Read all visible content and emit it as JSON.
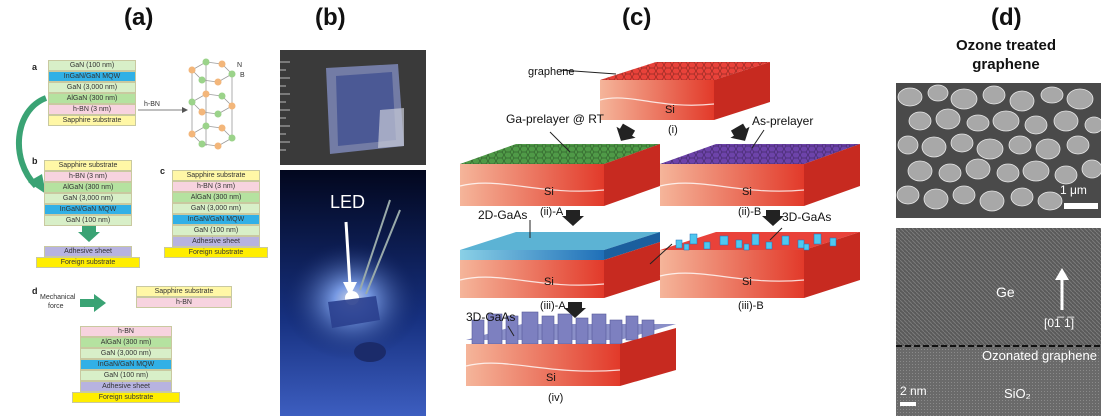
{
  "panels": {
    "a": {
      "label": "(a)"
    },
    "b": {
      "label": "(b)"
    },
    "c": {
      "label": "(c)"
    },
    "d": {
      "label": "(d)",
      "title_line1": "Ozone treated",
      "title_line2": "graphene"
    }
  },
  "panel_a": {
    "sub_a": "a",
    "sub_b": "b",
    "sub_c": "c",
    "sub_d": "d",
    "stack_a": [
      "GaN (100 nm)",
      "InGaN/GaN MQW",
      "GaN (3,000 nm)",
      "AlGaN (300 nm)",
      "h-BN (3 nm)",
      "Sapphire substrate"
    ],
    "hbn_arrow_label": "h-BN",
    "atom_n": "N",
    "atom_b": "B",
    "stack_b": [
      "Sapphire substrate",
      "h-BN (3 nm)",
      "AlGaN (300 nm)",
      "GaN (3,000 nm)",
      "InGaN/GaN MQW",
      "GaN (100 nm)"
    ],
    "stack_b_bottom": [
      "Adhesive sheet",
      "Foreign substrate"
    ],
    "stack_c": [
      "Sapphire substrate",
      "h-BN (3 nm)",
      "AlGaN (300 nm)",
      "GaN (3,000 nm)",
      "InGaN/GaN MQW",
      "GaN (100 nm)",
      "Adhesive sheet",
      "Foreign substrate"
    ],
    "mech_label_1": "Mechanical",
    "mech_label_2": "force",
    "stack_d_top": [
      "Sapphire substrate",
      "h-BN"
    ],
    "stack_d": [
      "h-BN",
      "AlGaN (300 nm)",
      "GaN (3,000 nm)",
      "InGaN/GaN MQW",
      "GaN (100 nm)",
      "Adhesive sheet",
      "Foreign substrate"
    ]
  },
  "panel_b": {
    "led_label": "LED"
  },
  "panel_c": {
    "graphene": "graphene",
    "si": "Si",
    "step_i": "(i)",
    "ga_prelayer": "Ga-prelayer @ RT",
    "as_prelayer": "As-prelayer",
    "step_iiA": "(ii)-A",
    "step_iiB": "(ii)-B",
    "gaas_2d": "2D-GaAs",
    "gaas_3d": "3D-GaAs",
    "step_iiiA": "(iii)-A",
    "step_iiiB": "(iii)-B",
    "gaas_3d_iv": "3D-GaAs",
    "step_iv": "(iv)"
  },
  "panel_d": {
    "scale_top": "1 μm",
    "ge": "Ge",
    "direction": "[01̅ 1̅]",
    "ozonated": "Ozonated graphene",
    "scale_bottom": "2 nm",
    "sio2": "SiO₂"
  },
  "colors": {
    "si_red": "#e23a2a",
    "graphene_green": "#3f8f3f",
    "as_purple": "#6b3fa3",
    "gaas_blue": "#1f8fd0",
    "led_blue": "#0b1b55"
  }
}
